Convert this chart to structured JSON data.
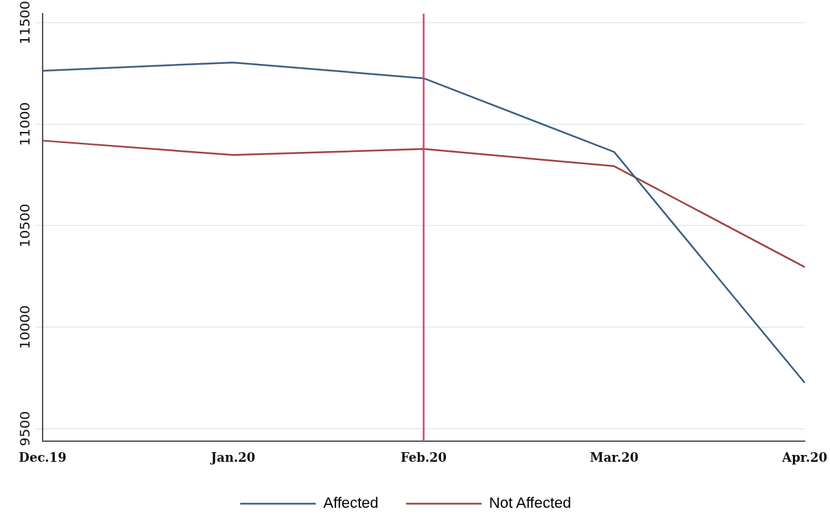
{
  "chart_data": {
    "type": "line",
    "categories": [
      "Dec.19",
      "Jan.20",
      "Feb.20",
      "Mar.20",
      "Apr.20"
    ],
    "series": [
      {
        "name": "Affected",
        "color": "#3b5e82",
        "values": [
          11263,
          11304,
          11226,
          10863,
          9726
        ]
      },
      {
        "name": "Not Affected",
        "color": "#a0413f",
        "values": [
          10919,
          10848,
          10878,
          10793,
          10296
        ]
      }
    ],
    "ylim": [
      9437,
      11544
    ],
    "yticks": [
      9500,
      10000,
      10500,
      11000,
      11500
    ],
    "grid": "y",
    "legend": "bottom",
    "marker": "none",
    "line_style": "solid",
    "ref_lines": [
      {
        "axis": "x",
        "value": "Feb.20",
        "color": "#d0456e"
      }
    ]
  }
}
